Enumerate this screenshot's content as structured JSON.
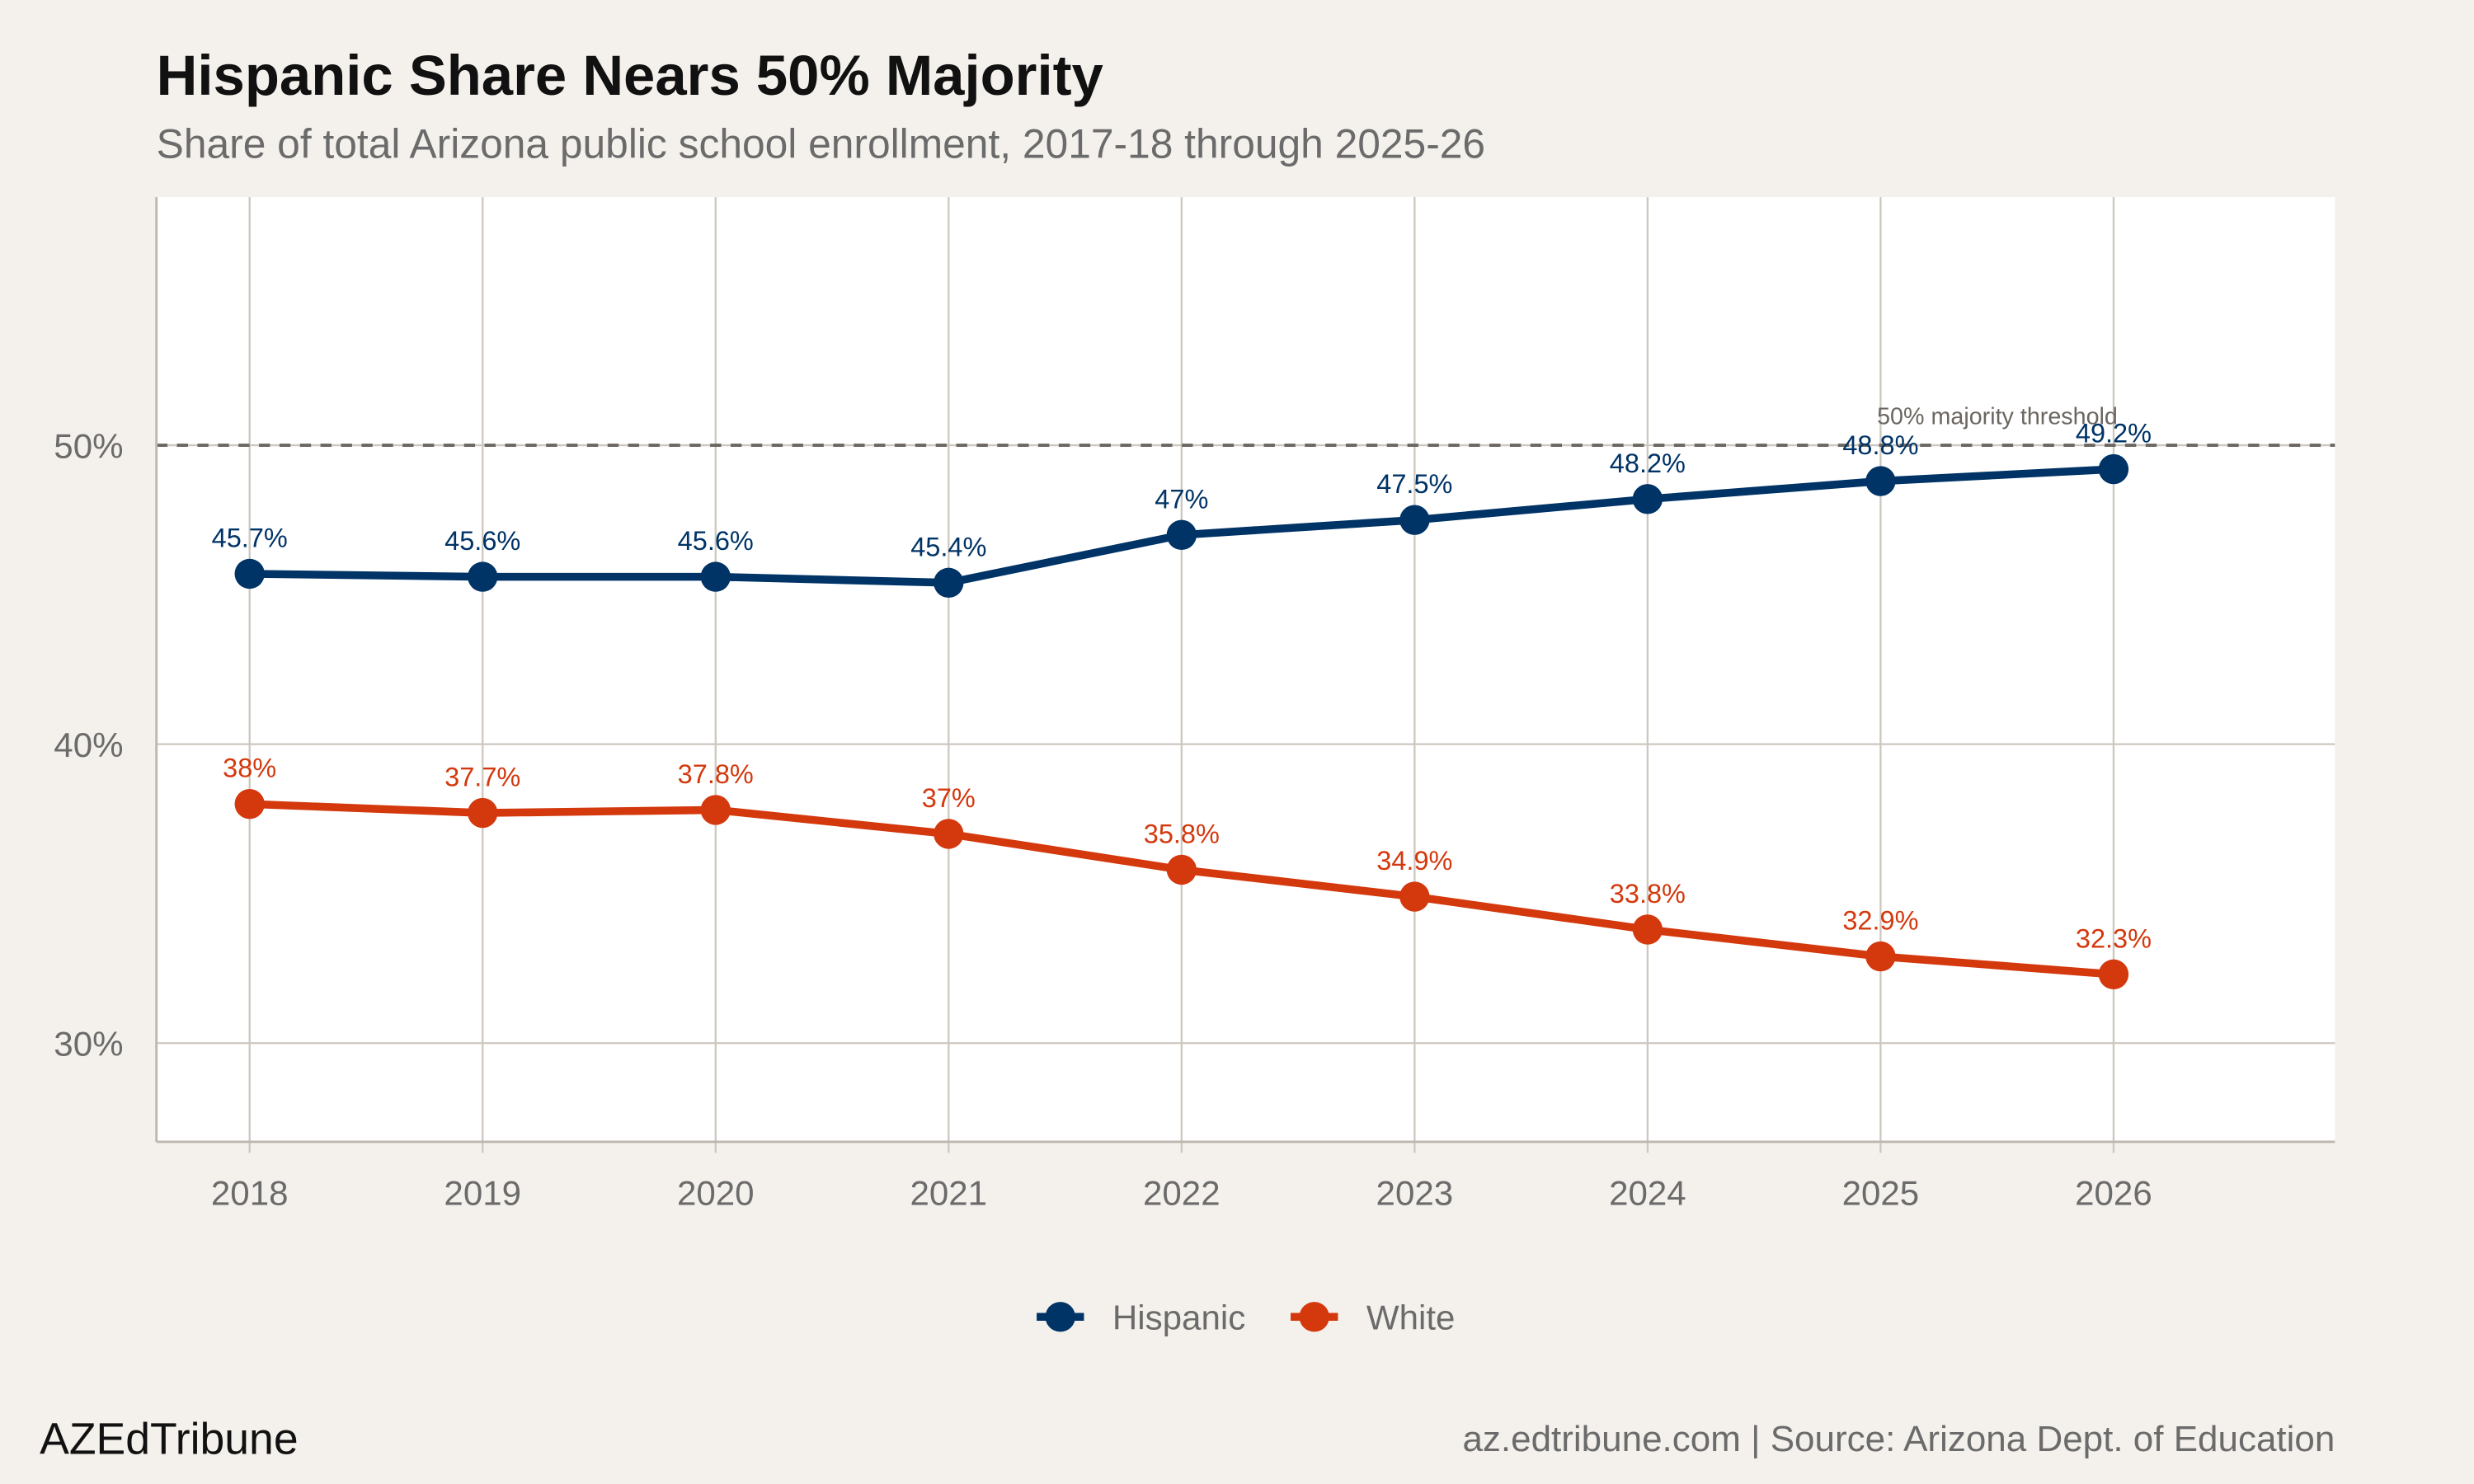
{
  "chart_data": {
    "type": "line",
    "title": "Hispanic Share Nears 50% Majority",
    "subtitle": "Share of total Arizona public school enrollment, 2017-18 through 2025-26",
    "xlabel": "",
    "ylabel": "",
    "x": [
      2018,
      2019,
      2020,
      2021,
      2022,
      2023,
      2024,
      2025,
      2026
    ],
    "xlim": [
      2017.6,
      2026.95
    ],
    "ylim": [
      26.7,
      58.3
    ],
    "yticks": [
      30,
      40,
      50
    ],
    "ytick_labels": [
      "30%",
      "40%",
      "50%"
    ],
    "xtick_labels": [
      "2018",
      "2019",
      "2020",
      "2021",
      "2022",
      "2023",
      "2024",
      "2025",
      "2026"
    ],
    "grid": true,
    "legend_position": "bottom",
    "series": [
      {
        "name": "Hispanic",
        "color": "#003366",
        "values": [
          45.7,
          45.6,
          45.6,
          45.4,
          47.0,
          47.5,
          48.2,
          48.8,
          49.2
        ],
        "labels": [
          "45.7%",
          "45.6%",
          "45.6%",
          "45.4%",
          "47%",
          "47.5%",
          "48.2%",
          "48.8%",
          "49.2%"
        ]
      },
      {
        "name": "White",
        "color": "#d4380d",
        "values": [
          38.0,
          37.7,
          37.8,
          37.0,
          35.8,
          34.9,
          33.8,
          32.9,
          32.3
        ],
        "labels": [
          "38%",
          "37.7%",
          "37.8%",
          "37%",
          "35.8%",
          "34.9%",
          "33.8%",
          "32.9%",
          "32.3%"
        ]
      }
    ],
    "reference_line": {
      "y": 50,
      "label": "50% majority threshold",
      "style": "dashed"
    }
  },
  "footer": {
    "brand": "AZEdTribune",
    "source": "az.edtribune.com | Source: Arizona Dept. of Education"
  },
  "colors": {
    "background": "#f4f1ec",
    "panel": "#ffffff",
    "grid": "#cdc7bf",
    "muted_text": "#666666"
  }
}
